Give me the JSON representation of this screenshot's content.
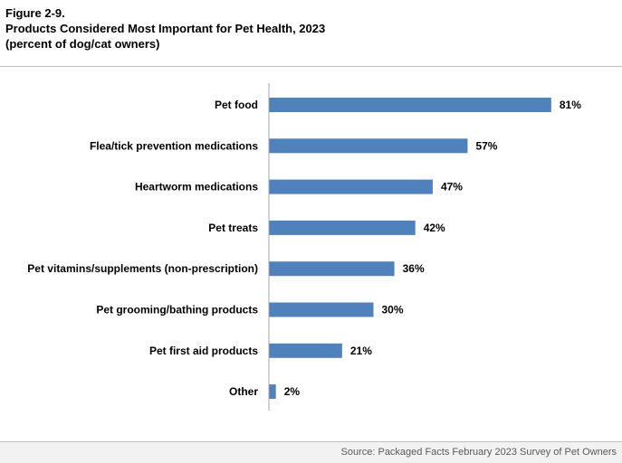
{
  "header": {
    "figure_label": "Figure 2-9.",
    "title": "Products Considered Most Important for Pet Health, 2023",
    "subtitle": "(percent of dog/cat owners)"
  },
  "footer": {
    "source": "Source: Packaged Facts February 2023 Survey of Pet Owners"
  },
  "colors": {
    "bar": "#4f81bd",
    "axis": "#a6a6a6"
  },
  "chart_data": {
    "type": "bar",
    "orientation": "horizontal",
    "title": "Products Considered Most Important for Pet Health, 2023",
    "subtitle": "(percent of dog/cat owners)",
    "xlabel": "",
    "ylabel": "",
    "xlim": [
      0,
      100
    ],
    "unit": "%",
    "grid": false,
    "legend": "none",
    "categories": [
      "Pet food",
      "Flea/tick prevention medications",
      "Heartworm medications",
      "Pet treats",
      "Pet vitamins/supplements (non-prescription)",
      "Pet grooming/bathing products",
      "Pet first aid products",
      "Other"
    ],
    "values": [
      81,
      57,
      47,
      42,
      36,
      30,
      21,
      2
    ],
    "value_labels": [
      "81%",
      "57%",
      "47%",
      "42%",
      "36%",
      "30%",
      "21%",
      "2%"
    ]
  }
}
